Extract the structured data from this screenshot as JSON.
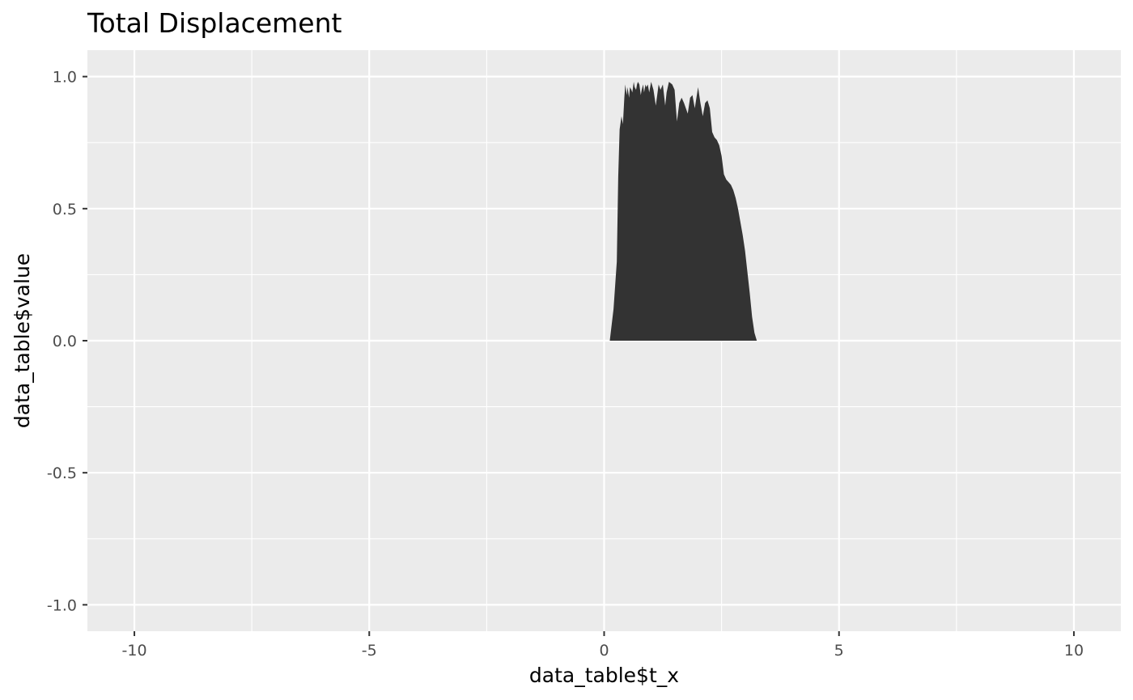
{
  "chart_data": {
    "type": "area",
    "title": "Total Displacement",
    "xlabel": "data_table$t_x",
    "ylabel": "data_table$value",
    "xlim": [
      -11,
      11
    ],
    "ylim": [
      -1.1,
      1.1
    ],
    "x_ticks": [
      -10,
      -5,
      0,
      5,
      10
    ],
    "x_tick_labels": [
      "-10",
      "-5",
      "0",
      "5",
      "10"
    ],
    "y_ticks": [
      -1.0,
      -0.5,
      0.0,
      0.5,
      1.0
    ],
    "y_tick_labels": [
      "-1.0",
      "-0.5",
      "0.0",
      "0.5",
      "1.0"
    ],
    "grid": true,
    "legend": "none",
    "colors": {
      "panel": "#ebebeb",
      "grid": "#ffffff",
      "fill": "#333333",
      "tick": "#333333"
    },
    "series": [
      {
        "x": [
          0.12,
          0.2,
          0.27,
          0.3,
          0.33,
          0.37,
          0.4,
          0.43,
          0.45,
          0.48,
          0.5,
          0.53,
          0.55,
          0.58,
          0.6,
          0.63,
          0.65,
          0.68,
          0.7,
          0.72,
          0.75,
          0.78,
          0.8,
          0.83,
          0.85,
          0.88,
          0.9,
          0.93,
          0.96,
          1.0,
          1.05,
          1.1,
          1.13,
          1.16,
          1.2,
          1.25,
          1.3,
          1.33,
          1.38,
          1.45,
          1.5,
          1.55,
          1.6,
          1.65,
          1.7,
          1.78,
          1.83,
          1.88,
          1.93,
          2.0,
          2.05,
          2.1,
          2.15,
          2.2,
          2.25,
          2.3,
          2.35,
          2.4,
          2.45,
          2.5,
          2.55,
          2.6,
          2.65,
          2.7,
          2.75,
          2.8,
          2.85,
          2.9,
          2.95,
          3.0,
          3.05,
          3.1,
          3.15,
          3.2,
          3.25,
          3.3,
          3.35,
          3.4,
          3.45
        ],
        "y": [
          0.0,
          0.12,
          0.3,
          0.62,
          0.8,
          0.85,
          0.82,
          0.92,
          0.97,
          0.93,
          0.96,
          0.92,
          0.96,
          0.95,
          0.94,
          0.98,
          0.96,
          0.95,
          0.97,
          0.98,
          0.97,
          0.93,
          0.95,
          0.97,
          0.94,
          0.97,
          0.96,
          0.97,
          0.94,
          0.98,
          0.95,
          0.89,
          0.93,
          0.97,
          0.95,
          0.97,
          0.89,
          0.94,
          0.98,
          0.97,
          0.95,
          0.83,
          0.9,
          0.92,
          0.9,
          0.86,
          0.92,
          0.93,
          0.88,
          0.96,
          0.9,
          0.85,
          0.9,
          0.91,
          0.88,
          0.79,
          0.77,
          0.76,
          0.74,
          0.7,
          0.63,
          0.61,
          0.6,
          0.59,
          0.57,
          0.54,
          0.5,
          0.45,
          0.4,
          0.34,
          0.26,
          0.18,
          0.09,
          0.03,
          0.0,
          0.0,
          0.0,
          0.0,
          0.0
        ]
      }
    ]
  }
}
